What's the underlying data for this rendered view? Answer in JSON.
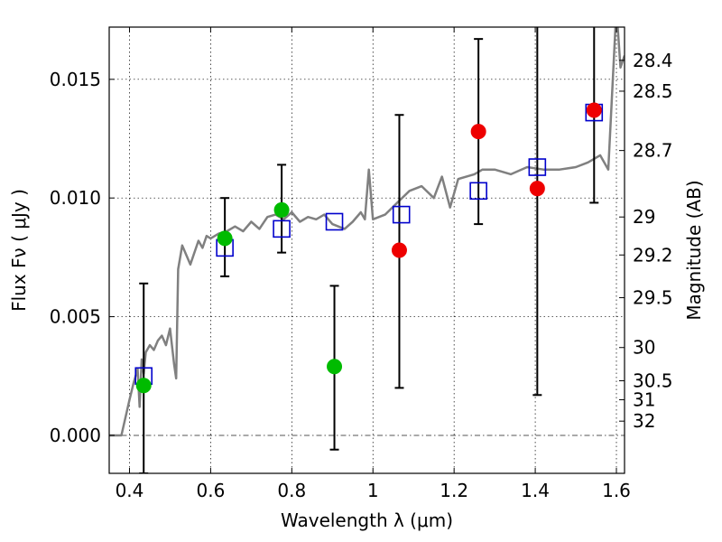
{
  "chart_data": {
    "type": "scatter",
    "xlabel": "Wavelength  λ (μm)",
    "ylabel": "Flux  Fν  ( μJy )",
    "y2label": "Magnitude (AB)",
    "xlim": [
      0.35,
      1.62
    ],
    "ylim": [
      -0.0016,
      0.0172
    ],
    "grid": true,
    "xticks": [
      0.4,
      0.6,
      0.8,
      1.0,
      1.2,
      1.4,
      1.6
    ],
    "xtick_labels": [
      "0.4",
      "0.6",
      "0.8",
      "1",
      "1.2",
      "1.4",
      "1.6"
    ],
    "yticks": [
      0.0,
      0.005,
      0.01,
      0.015
    ],
    "ytick_labels": [
      "0.000",
      "0.005",
      "0.010",
      "0.015"
    ],
    "magnitude_ticks": [
      {
        "label": "28.4",
        "flux": 0.0158
      },
      {
        "label": "28.5",
        "flux": 0.0145
      },
      {
        "label": "28.7",
        "flux": 0.012
      },
      {
        "label": "29",
        "flux": 0.0092
      },
      {
        "label": "29.2",
        "flux": 0.0076
      },
      {
        "label": "29.5",
        "flux": 0.0058
      },
      {
        "label": "30",
        "flux": 0.0037
      },
      {
        "label": "30.5",
        "flux": 0.0023
      },
      {
        "label": "31",
        "flux": 0.0015
      },
      {
        "label": "32",
        "flux": 0.0006
      }
    ],
    "series": [
      {
        "color": "#808080",
        "style": "line",
        "x": [
          0.35,
          0.38,
          0.4,
          0.41,
          0.42,
          0.425,
          0.43,
          0.435,
          0.44,
          0.45,
          0.46,
          0.47,
          0.48,
          0.49,
          0.5,
          0.51,
          0.515,
          0.52,
          0.53,
          0.55,
          0.57,
          0.58,
          0.59,
          0.6,
          0.62,
          0.64,
          0.66,
          0.68,
          0.7,
          0.72,
          0.74,
          0.76,
          0.78,
          0.8,
          0.82,
          0.84,
          0.86,
          0.88,
          0.9,
          0.93,
          0.95,
          0.97,
          0.98,
          0.99,
          1.0,
          1.03,
          1.06,
          1.09,
          1.12,
          1.15,
          1.17,
          1.19,
          1.21,
          1.25,
          1.27,
          1.3,
          1.34,
          1.38,
          1.42,
          1.46,
          1.5,
          1.53,
          1.56,
          1.58,
          1.6,
          1.61,
          1.62
        ],
        "y": [
          0.0,
          0.0,
          0.0015,
          0.0022,
          0.0028,
          0.0012,
          0.0032,
          0.0026,
          0.0035,
          0.0038,
          0.0036,
          0.004,
          0.0042,
          0.0038,
          0.0045,
          0.003,
          0.0024,
          0.007,
          0.008,
          0.0072,
          0.0082,
          0.0079,
          0.0084,
          0.0083,
          0.0085,
          0.0086,
          0.0088,
          0.0086,
          0.009,
          0.0087,
          0.0092,
          0.0093,
          0.0091,
          0.0094,
          0.009,
          0.0092,
          0.0091,
          0.0093,
          0.0089,
          0.0087,
          0.009,
          0.0094,
          0.0091,
          0.0112,
          0.0091,
          0.0093,
          0.0098,
          0.0103,
          0.0105,
          0.01,
          0.0109,
          0.0096,
          0.0108,
          0.011,
          0.0112,
          0.0112,
          0.011,
          0.0113,
          0.0112,
          0.0112,
          0.0113,
          0.0115,
          0.0118,
          0.0112,
          0.018,
          0.0155,
          0.016
        ]
      },
      {
        "color": "#0000cc",
        "style": "open-square",
        "x": [
          0.435,
          0.635,
          0.775,
          0.905,
          1.07,
          1.26,
          1.405,
          1.545
        ],
        "y": [
          0.0025,
          0.0079,
          0.0087,
          0.009,
          0.0093,
          0.0103,
          0.0113,
          0.0136
        ]
      },
      {
        "color": "#00bb00",
        "style": "filled-circle",
        "x": [
          0.435,
          0.635,
          0.775,
          0.905
        ],
        "y": [
          0.0021,
          0.0083,
          0.0095,
          0.0029
        ],
        "yerr_low": [
          0.0037,
          0.0016,
          0.0018,
          0.0035
        ],
        "yerr_high": [
          0.0043,
          0.0017,
          0.0019,
          0.0034
        ]
      },
      {
        "color": "#ee0000",
        "style": "filled-circle",
        "x": [
          1.065,
          1.26,
          1.405,
          1.545
        ],
        "y": [
          0.0078,
          0.0128,
          0.0104,
          0.0137
        ],
        "yerr_low": [
          0.0058,
          0.0039,
          0.0087,
          0.0039
        ],
        "yerr_high": [
          0.0057,
          0.0039,
          0.0088,
          0.0039
        ]
      }
    ],
    "reference_lines": [
      {
        "axis": "y",
        "value": 0.0,
        "style": "dash-dot",
        "color": "#555555"
      }
    ]
  }
}
